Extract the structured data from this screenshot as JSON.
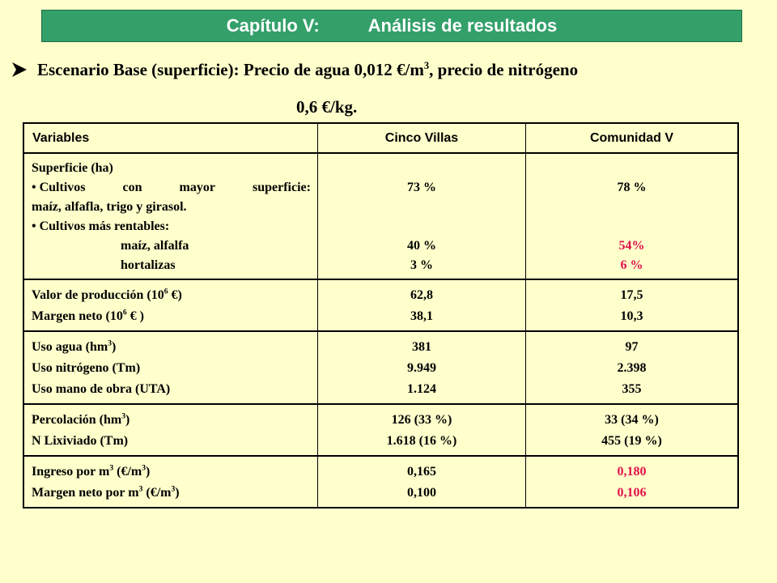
{
  "header": {
    "chapter": "Capítulo V:",
    "title": "Análisis de resultados"
  },
  "scenario": {
    "text_line1": "Escenario Base (superficie): Precio de agua 0,012 €/m",
    "sup": "3",
    "text_line1_end": ", precio de nitrógeno",
    "text_line2": "0,6 €/kg."
  },
  "table": {
    "headers": [
      "Variables",
      "Cinco Villas",
      "Comunidad V"
    ],
    "superficie": {
      "label": "Superficie (ha)",
      "bullet1_a": "• Cultivos con mayor superficie:",
      "bullet1_b": "maíz, alfafla, trigo y girasol.",
      "bullet2": "• Cultivos más rentables:",
      "sub1": "maíz, alfalfa",
      "sub2": "hortalizas",
      "cv": {
        "mayor": "73 %",
        "rent1": "40 %",
        "rent2": "3 %"
      },
      "com": {
        "mayor": "78 %",
        "rent1": "54%",
        "rent2": "6 %"
      }
    },
    "produccion": {
      "valor_label": "Valor de producción (10",
      "valor_sup": "6",
      "valor_end": " €)",
      "margen_label": "Margen neto (10",
      "margen_sup": "6",
      "margen_end": " € )",
      "cv": [
        "62,8",
        "38,1"
      ],
      "com": [
        "17,5",
        "10,3"
      ]
    },
    "uso": {
      "agua_label": "Uso agua (hm",
      "agua_sup": "3",
      "agua_end": ")",
      "nitro_label": "Uso nitrógeno (Tm)",
      "mano_label": "Uso mano de obra (UTA)",
      "cv": [
        "381",
        "9.949",
        "1.124"
      ],
      "com": [
        "97",
        "2.398",
        "355"
      ]
    },
    "percolacion": {
      "perc_label": "Percolación (hm",
      "perc_sup": "3",
      "perc_end": ")",
      "lix_label": "N Lixiviado (Tm)",
      "cv": [
        "126 (33 %)",
        "1.618 (16 %)"
      ],
      "com": [
        "33 (34 %)",
        "455 (19 %)"
      ]
    },
    "ingreso": {
      "ing_label": "Ingreso por m",
      "ing_sup1": "3",
      "ing_mid": " (€/m",
      "ing_sup2": "3",
      "ing_end": ")",
      "mar_label": "Margen neto por m",
      "mar_sup1": "3",
      "mar_mid": " (€/m",
      "mar_sup2": "3",
      "mar_end": ")",
      "cv": [
        "0,165",
        "0,100"
      ],
      "com": [
        "0,180",
        "0,106"
      ]
    }
  },
  "colors": {
    "background": "#ffffcc",
    "title_bar": "#33a06a",
    "highlight": "#e0104a"
  }
}
